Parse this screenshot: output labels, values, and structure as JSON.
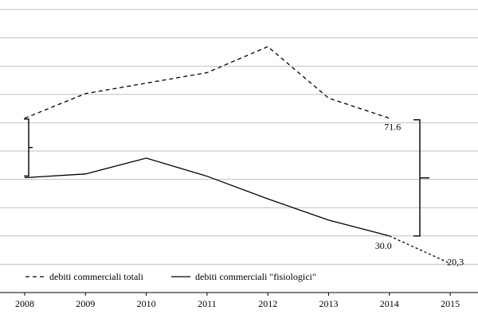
{
  "chart_data": {
    "type": "line",
    "title": "",
    "xlabel": "",
    "ylabel": "",
    "x": [
      "2008",
      "2009",
      "2010",
      "2011",
      "2012",
      "2013",
      "2014",
      "2015"
    ],
    "ylim": [
      10,
      110
    ],
    "grid": true,
    "legend_position": "bottom-left",
    "series": [
      {
        "name": "debiti commerciali totali",
        "style": "dashed",
        "color": "#000000",
        "values": [
          71.6,
          80.3,
          84.0,
          87.7,
          96.9,
          78.7,
          71.6,
          null
        ]
      },
      {
        "name": "debiti commerciali \"fisiologici\"",
        "style": "solid",
        "color": "#000000",
        "values": [
          50.6,
          51.9,
          57.5,
          51.1,
          43.1,
          35.6,
          30.0,
          null
        ]
      },
      {
        "name": "",
        "style": "dotted",
        "color": "#000000",
        "values": [
          null,
          null,
          null,
          null,
          null,
          null,
          30.0,
          20.3
        ]
      }
    ],
    "annotations": [
      {
        "text": "71.6",
        "x": "2014",
        "y": 71.6
      },
      {
        "text": "30.0",
        "x": "2014",
        "y": 30.0
      },
      {
        "text": "20,3",
        "x": "2015",
        "y": 20.3
      }
    ]
  }
}
